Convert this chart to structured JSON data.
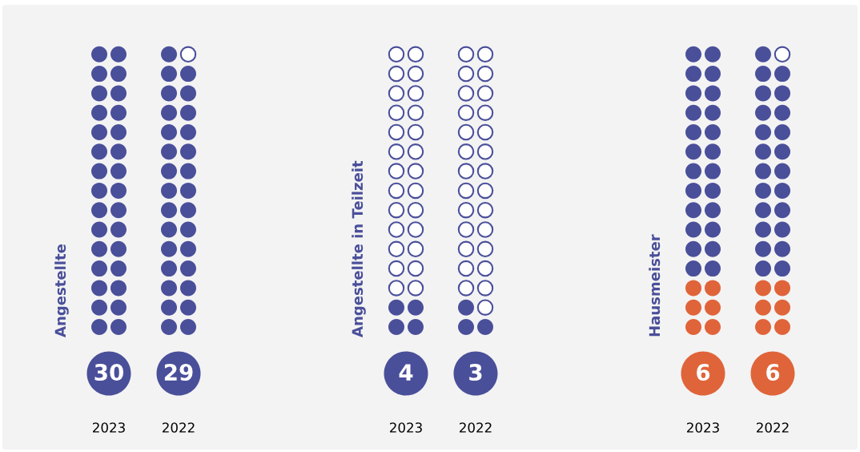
{
  "chart_data": [
    {
      "type": "other",
      "ylabel": "Angestellte",
      "categories": [
        "2023",
        "2022"
      ],
      "data_labels": true,
      "color": "#4a4f9a",
      "values": [
        30,
        29
      ]
    },
    {
      "type": "other",
      "ylabel": "Angestellte in Teilzeit",
      "categories": [
        "2023",
        "2022"
      ],
      "data_labels": true,
      "color": "#4a4f9a",
      "values": [
        4,
        3
      ]
    },
    {
      "type": "other",
      "ylabel": "Hausmeister",
      "categories": [
        "2023",
        "2022"
      ],
      "data_labels": true,
      "color": "#e0643a",
      "values": [
        6,
        6
      ]
    }
  ]
}
